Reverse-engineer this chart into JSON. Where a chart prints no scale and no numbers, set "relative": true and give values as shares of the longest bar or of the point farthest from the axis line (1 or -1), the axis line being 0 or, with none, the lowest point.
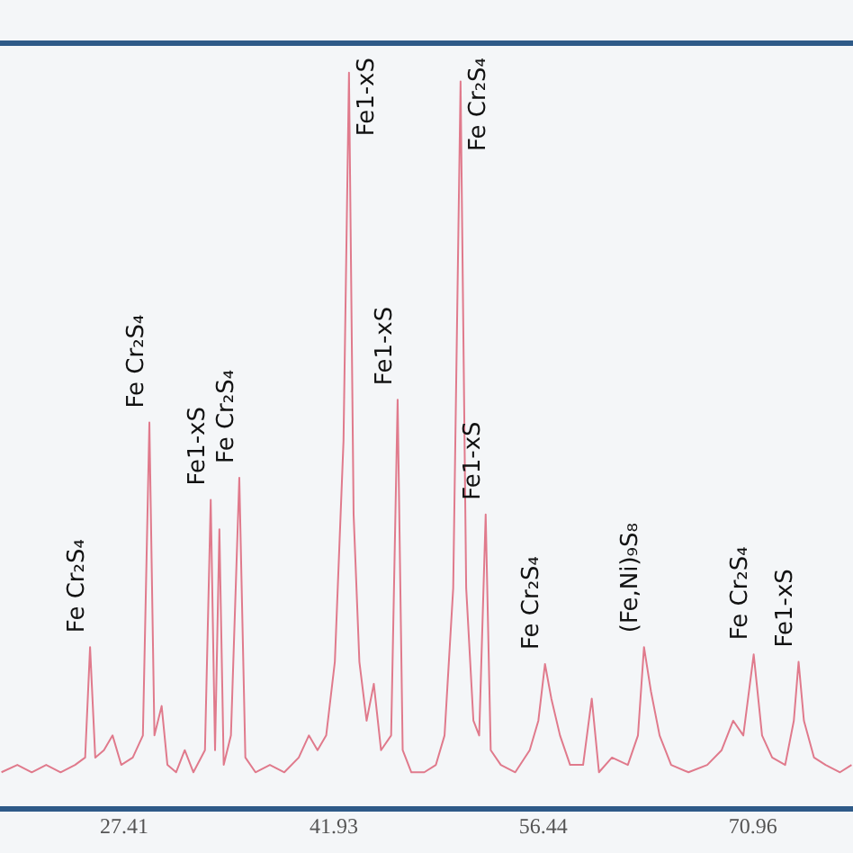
{
  "chart_data": {
    "type": "line",
    "relative": true,
    "color": "#e07a8c",
    "x": [
      18.9,
      20,
      21,
      22,
      23,
      24,
      24.7,
      25.04,
      25.4,
      26,
      26.6,
      27.2,
      28,
      28.7,
      29.15,
      29.5,
      30,
      30.4,
      31,
      31.6,
      32.2,
      33,
      33.4,
      33.7,
      34.0,
      34.3,
      34.8,
      35.38,
      35.8,
      36.5,
      37.5,
      38.5,
      39.5,
      40.2,
      40.8,
      41.4,
      42.0,
      42.6,
      42.98,
      43.3,
      43.7,
      44.2,
      44.7,
      45.2,
      45.9,
      46.35,
      46.7,
      47.3,
      48.2,
      49.0,
      49.6,
      50.2,
      50.71,
      51.1,
      51.6,
      52.0,
      52.45,
      52.8,
      53.5,
      54.5,
      55.5,
      56.1,
      56.56,
      57.0,
      57.6,
      58.3,
      59.2,
      59.8,
      60.3,
      61.2,
      62.3,
      63.0,
      63.42,
      63.9,
      64.5,
      65.3,
      66.5,
      67.8,
      68.8,
      69.6,
      70.3,
      71.02,
      71.6,
      72.3,
      73.2,
      73.8,
      74.13,
      74.5,
      75.2,
      76,
      77,
      77.8
    ],
    "values": [
      0.05,
      0.06,
      0.05,
      0.06,
      0.05,
      0.06,
      0.07,
      0.22,
      0.07,
      0.08,
      0.1,
      0.06,
      0.07,
      0.1,
      0.525,
      0.1,
      0.14,
      0.06,
      0.05,
      0.08,
      0.05,
      0.08,
      0.42,
      0.08,
      0.38,
      0.06,
      0.1,
      0.45,
      0.07,
      0.05,
      0.06,
      0.05,
      0.07,
      0.1,
      0.08,
      0.1,
      0.2,
      0.5,
      1,
      0.4,
      0.2,
      0.12,
      0.17,
      0.08,
      0.1,
      0.556,
      0.08,
      0.05,
      0.05,
      0.06,
      0.1,
      0.3,
      0.988,
      0.3,
      0.12,
      0.1,
      0.4,
      0.08,
      0.06,
      0.05,
      0.08,
      0.12,
      0.197,
      0.15,
      0.1,
      0.06,
      0.06,
      0.15,
      0.05,
      0.07,
      0.06,
      0.1,
      0.22,
      0.16,
      0.1,
      0.06,
      0.05,
      0.06,
      0.08,
      0.12,
      0.1,
      0.21,
      0.1,
      0.07,
      0.06,
      0.12,
      0.2,
      0.12,
      0.07,
      0.06,
      0.05,
      0.06
    ],
    "xlim": [
      18.8,
      77.9
    ],
    "xticks": [
      27.41,
      41.93,
      56.44,
      70.96
    ],
    "grid": false,
    "marker": "none",
    "annotations": [
      {
        "text": "Fe Cr₂S₄",
        "x": 25.04,
        "y": 0.22
      },
      {
        "text": "Fe Cr₂S₄",
        "x": 29.15,
        "y": 0.525
      },
      {
        "text": "Fe1-xS",
        "x": 33.4,
        "y": 0.42
      },
      {
        "text": "Fe Cr₂S₄",
        "x": 35.38,
        "y": 0.45
      },
      {
        "text": "Fe1-xS",
        "x": 42.98,
        "y": 1
      },
      {
        "text": "Fe1-xS",
        "x": 46.35,
        "y": 0.556
      },
      {
        "text": "Fe Cr₂S₄",
        "x": 50.71,
        "y": 0.988
      },
      {
        "text": "Fe1-xS",
        "x": 52.45,
        "y": 0.4
      },
      {
        "text": "Fe Cr₂S₄",
        "x": 56.56,
        "y": 0.197
      },
      {
        "text": "(Fe,Ni)₉S₈",
        "x": 63.42,
        "y": 0.22
      },
      {
        "text": "Fe Cr₂S₄",
        "x": 71.02,
        "y": 0.21
      },
      {
        "text": "Fe1-xS",
        "x": 74.13,
        "y": 0.2
      }
    ]
  }
}
